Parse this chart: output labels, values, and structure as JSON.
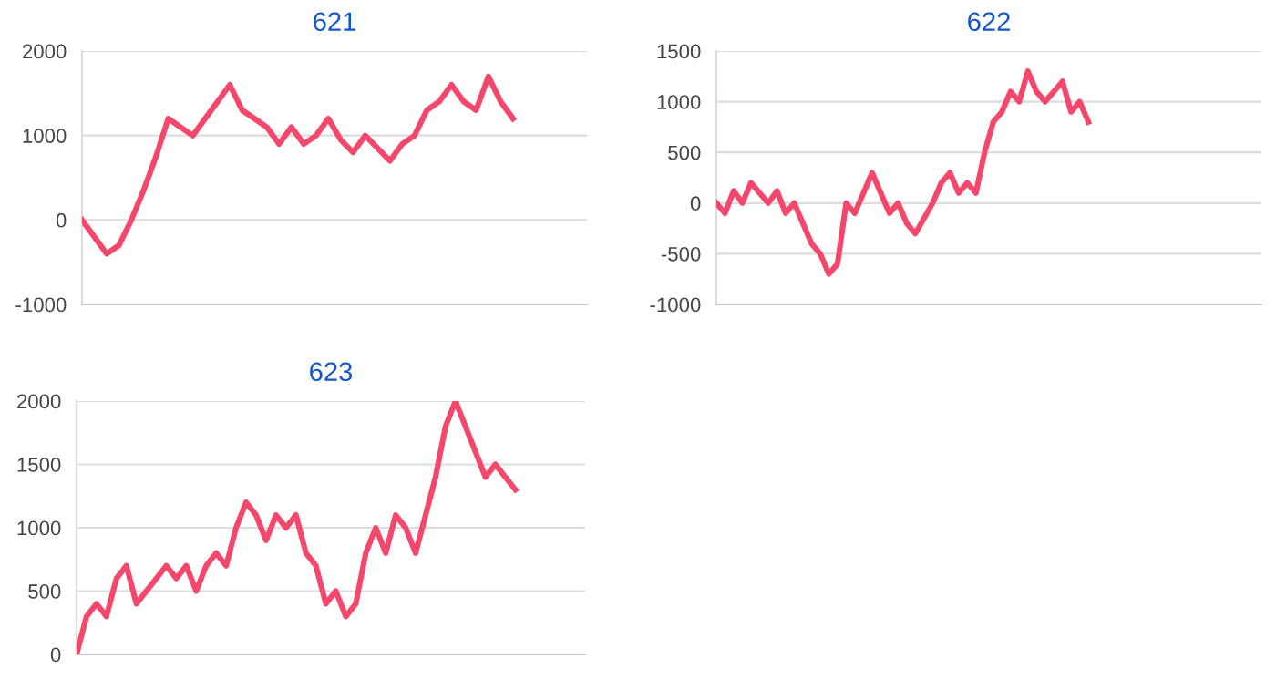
{
  "chart_data": [
    {
      "type": "line",
      "title": "621",
      "categories": [
        null,
        null,
        null,
        null,
        null,
        null,
        null,
        null,
        null,
        null,
        null,
        null,
        null,
        null,
        null,
        null,
        null,
        null,
        null,
        null,
        null,
        null,
        null,
        null,
        null,
        null,
        null,
        null,
        null,
        null,
        null,
        null,
        null,
        null,
        null,
        null,
        null,
        null,
        null,
        null,
        null,
        null
      ],
      "series": [
        {
          "color": "#f4476b",
          "values": [
            0,
            -200,
            -400,
            -300,
            0,
            350,
            750,
            1200,
            1100,
            1000,
            1200,
            1400,
            1600,
            1300,
            1200,
            1100,
            900,
            1100,
            900,
            1000,
            1200,
            950,
            800,
            1000,
            850,
            700,
            900,
            1000,
            1300,
            1400,
            1600,
            1400,
            1300,
            1700,
            1400,
            1200,
            null,
            null,
            null,
            null,
            null,
            null
          ]
        }
      ],
      "ylim": [
        -1000,
        2000
      ],
      "yticks": [
        -1000,
        0,
        1000,
        2000
      ],
      "grid": "y",
      "marker": "none",
      "line_style": "solid"
    },
    {
      "type": "line",
      "title": "622",
      "categories": [
        null,
        null,
        null,
        null,
        null,
        null,
        null,
        null,
        null,
        null,
        null,
        null,
        null,
        null,
        null,
        null,
        null,
        null,
        null,
        null,
        null,
        null,
        null,
        null,
        null,
        null,
        null,
        null,
        null,
        null,
        null,
        null,
        null,
        null,
        null,
        null,
        null,
        null,
        null,
        null,
        null,
        null,
        null,
        null,
        null,
        null,
        null,
        null,
        null,
        null,
        null,
        null,
        null,
        null,
        null,
        null,
        null,
        null,
        null,
        null,
        null,
        null,
        null,
        null
      ],
      "series": [
        {
          "color": "#f4476b",
          "values": [
            0,
            -100,
            120,
            0,
            200,
            100,
            0,
            120,
            -100,
            0,
            -200,
            -400,
            -500,
            -700,
            -600,
            0,
            -100,
            100,
            300,
            100,
            -100,
            0,
            -200,
            -300,
            -150,
            0,
            200,
            300,
            100,
            200,
            100,
            500,
            800,
            900,
            1100,
            1000,
            1300,
            1100,
            1000,
            1100,
            1200,
            900,
            1000,
            800,
            null,
            null,
            null,
            null,
            null,
            null,
            null,
            null,
            null,
            null,
            null,
            null,
            null,
            null,
            null,
            null,
            null,
            null,
            null,
            null
          ]
        }
      ],
      "ylim": [
        -1000,
        1500
      ],
      "yticks": [
        -1000,
        -500,
        0,
        500,
        1000,
        1500
      ],
      "grid": "y",
      "marker": "none",
      "line_style": "solid"
    },
    {
      "type": "line",
      "title": "623",
      "categories": [
        null,
        null,
        null,
        null,
        null,
        null,
        null,
        null,
        null,
        null,
        null,
        null,
        null,
        null,
        null,
        null,
        null,
        null,
        null,
        null,
        null,
        null,
        null,
        null,
        null,
        null,
        null,
        null,
        null,
        null,
        null,
        null,
        null,
        null,
        null,
        null,
        null,
        null,
        null,
        null,
        null,
        null,
        null,
        null,
        null,
        null,
        null,
        null,
        null,
        null,
        null,
        null
      ],
      "series": [
        {
          "color": "#f4476b",
          "values": [
            0,
            300,
            400,
            300,
            600,
            700,
            400,
            500,
            600,
            700,
            600,
            700,
            500,
            700,
            800,
            700,
            1000,
            1200,
            1100,
            900,
            1100,
            1000,
            1100,
            800,
            700,
            400,
            500,
            300,
            400,
            800,
            1000,
            800,
            1100,
            1000,
            800,
            1100,
            1400,
            1800,
            2000,
            1800,
            1600,
            1400,
            1500,
            1400,
            1300,
            null,
            null,
            null,
            null,
            null,
            null,
            null
          ]
        }
      ],
      "ylim": [
        0,
        2000
      ],
      "yticks": [
        0,
        500,
        1000,
        1500,
        2000
      ],
      "grid": "y",
      "marker": "none",
      "line_style": "solid"
    }
  ]
}
